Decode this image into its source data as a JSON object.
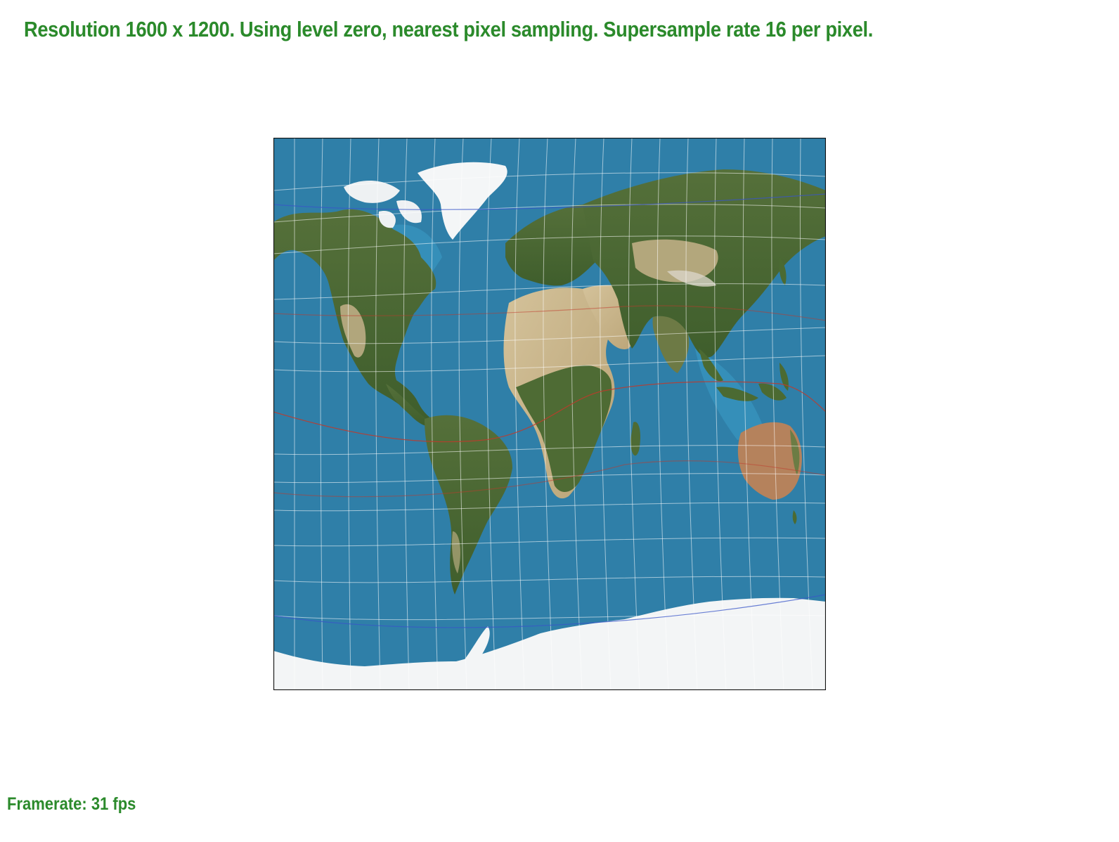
{
  "header": {
    "status_text": "Resolution 1600 x 1200. Using level zero, nearest pixel sampling. Supersample rate 16 per pixel."
  },
  "footer": {
    "framerate_text": "Framerate: 31 fps"
  },
  "map": {
    "imagery": "satellite-earth",
    "colors": {
      "ocean": "#2f7fa8",
      "land_green": "#4a6b35",
      "land_desert": "#c8b48a",
      "ice": "#f3f5f6",
      "graticule": "#ffffff",
      "tropic_line": "#c0392b",
      "polar_line": "#3a55c8",
      "frame": "#111111",
      "text": "#2b8a2b"
    }
  }
}
